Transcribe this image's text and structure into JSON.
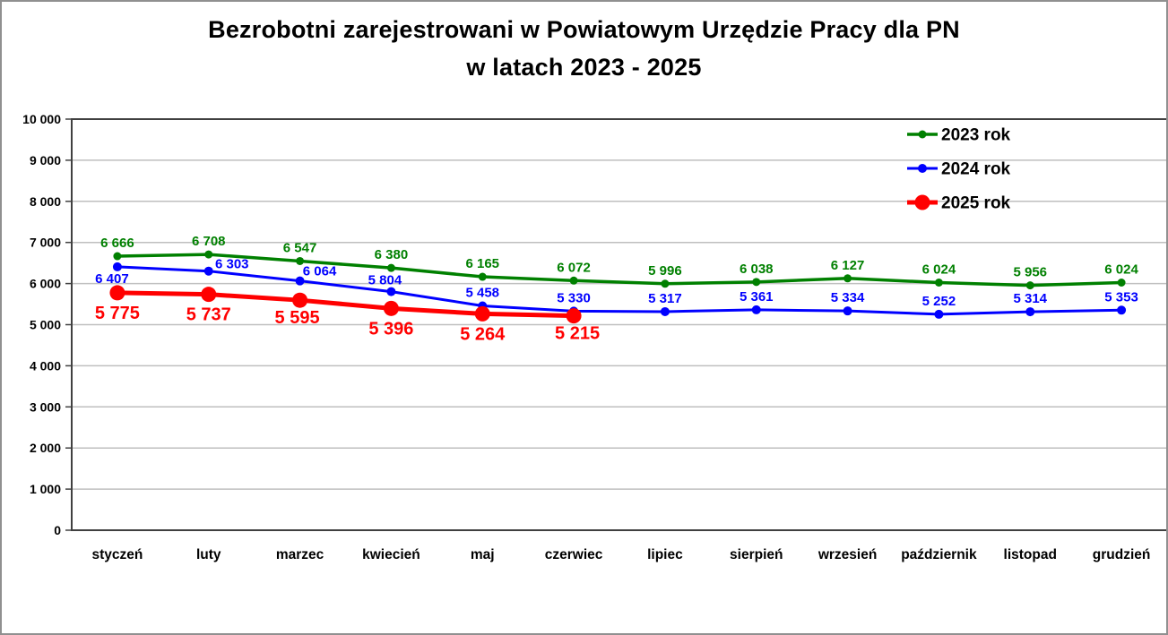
{
  "title": {
    "line1": "Bezrobotni zarejestrowani w Powiatowym Urzędzie Pracy dla PN",
    "line2": "w latach 2023 - 2025"
  },
  "chart_data": {
    "type": "line",
    "title": "Bezrobotni zarejestrowani w Powiatowym Urzędzie Pracy dla PN w latach 2023 - 2025",
    "categories": [
      "styczeń",
      "luty",
      "marzec",
      "kwiecień",
      "maj",
      "czerwiec",
      "lipiec",
      "sierpień",
      "wrzesień",
      "październik",
      "listopad",
      "grudzień"
    ],
    "series": [
      {
        "name": "2023 rok",
        "color": "#008000",
        "values": [
          6666,
          6708,
          6547,
          6380,
          6165,
          6072,
          5996,
          6038,
          6127,
          6024,
          5956,
          6024
        ],
        "line_width": 3.5,
        "marker_radius": 4.5,
        "label_font_size": 15,
        "label_default_offset": {
          "dx": 0,
          "dy": -10
        },
        "label_offsets": {}
      },
      {
        "name": "2024 rok",
        "color": "#0000ff",
        "values": [
          6407,
          6303,
          6064,
          5804,
          5458,
          5330,
          5317,
          5361,
          5334,
          5252,
          5314,
          5353
        ],
        "line_width": 3,
        "marker_radius": 5,
        "label_font_size": 15,
        "label_default_offset": {
          "dx": 0,
          "dy": -10
        },
        "label_offsets": {
          "0": {
            "dx": -6,
            "dy": 18
          },
          "1": {
            "dx": 26,
            "dy": -3
          },
          "2": {
            "dx": 22,
            "dy": -6
          },
          "3": {
            "dx": -7,
            "dy": -8
          }
        }
      },
      {
        "name": "2025 rok",
        "color": "#ff0000",
        "values": [
          5775,
          5737,
          5595,
          5396,
          5264,
          5215
        ],
        "line_width": 5,
        "marker_radius": 8.5,
        "label_font_size": 20,
        "label_default_offset": {
          "dx": 0,
          "dy": 29
        },
        "label_offsets": {
          "2": {
            "dx": -3,
            "dy": 26
          },
          "5": {
            "dx": 4,
            "dy": 26
          }
        }
      }
    ],
    "ylim": [
      0,
      10000
    ],
    "y_tick_step": 1000,
    "y_tick_labels": [
      "0",
      "1 000",
      "2 000",
      "3 000",
      "4 000",
      "5 000",
      "6 000",
      "7 000",
      "8 000",
      "9 000",
      "10 000"
    ],
    "xlabel": "",
    "ylabel": "",
    "grid": "horizontal",
    "legend_position": "top-right",
    "legend": [
      "2023 rok",
      "2024 rok",
      "2025 rok"
    ],
    "number_format": "space-thousands",
    "colors": {
      "gridline": "#bfbfbf",
      "axis": "#404040",
      "text": "#000000",
      "background": "#ffffff"
    }
  }
}
